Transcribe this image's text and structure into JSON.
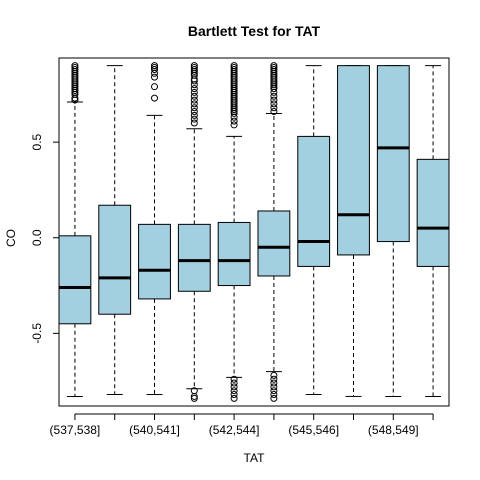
{
  "chart_data": {
    "type": "boxplot",
    "title": "Bartlett Test for TAT",
    "xlabel": "TAT",
    "ylabel": "CO",
    "ylim": [
      -0.88,
      0.94
    ],
    "y_ticks": [
      -0.5,
      0.0,
      0.5
    ],
    "y_tick_labels": [
      "-0.5",
      "0.0",
      "0.5"
    ],
    "x_tick_labels": [
      "(537,538]",
      "(540,541]",
      "(542,544]",
      "(545,546]",
      "(548,549]"
    ],
    "x_tick_positions": [
      1,
      3,
      5,
      7,
      9
    ],
    "box_color": "#a2d0e0",
    "boxes": [
      {
        "position": 1,
        "whisker_low": -0.83,
        "q1": -0.45,
        "median": -0.26,
        "q3": 0.01,
        "whisker_high": 0.71,
        "outliers": [
          0.9,
          0.89,
          0.88,
          0.87,
          0.86,
          0.85,
          0.84,
          0.83,
          0.82,
          0.81,
          0.8,
          0.79,
          0.78,
          0.77,
          0.76,
          0.75,
          0.73,
          0.72
        ]
      },
      {
        "position": 2,
        "whisker_low": -0.82,
        "q1": -0.4,
        "median": -0.21,
        "q3": 0.17,
        "whisker_high": 0.9,
        "outliers": []
      },
      {
        "position": 3,
        "whisker_low": -0.82,
        "q1": -0.32,
        "median": -0.17,
        "q3": 0.07,
        "whisker_high": 0.64,
        "outliers": [
          0.9,
          0.89,
          0.88,
          0.86,
          0.84,
          0.79,
          0.73
        ]
      },
      {
        "position": 4,
        "whisker_low": -0.79,
        "q1": -0.28,
        "median": -0.12,
        "q3": 0.07,
        "whisker_high": 0.57,
        "outliers": [
          0.9,
          0.89,
          0.88,
          0.87,
          0.86,
          0.85,
          0.83,
          0.82,
          0.8,
          0.78,
          0.76,
          0.74,
          0.72,
          0.7,
          0.68,
          0.66,
          0.64,
          0.62,
          0.6,
          -0.8,
          -0.83,
          -0.84
        ]
      },
      {
        "position": 5,
        "whisker_low": -0.73,
        "q1": -0.25,
        "median": -0.12,
        "q3": 0.08,
        "whisker_high": 0.53,
        "outliers": [
          0.9,
          0.89,
          0.88,
          0.87,
          0.86,
          0.85,
          0.84,
          0.83,
          0.82,
          0.81,
          0.8,
          0.79,
          0.78,
          0.77,
          0.76,
          0.75,
          0.74,
          0.73,
          0.72,
          0.71,
          0.7,
          0.69,
          0.68,
          0.67,
          0.66,
          0.65,
          0.63,
          0.61,
          0.59,
          -0.74,
          -0.76,
          -0.78,
          -0.8,
          -0.82,
          -0.84
        ]
      },
      {
        "position": 6,
        "whisker_low": -0.7,
        "q1": -0.2,
        "median": -0.05,
        "q3": 0.14,
        "whisker_high": 0.65,
        "outliers": [
          0.9,
          0.89,
          0.88,
          0.87,
          0.86,
          0.85,
          0.84,
          0.83,
          0.82,
          0.81,
          0.8,
          0.79,
          0.78,
          0.76,
          0.74,
          0.72,
          0.7,
          0.68,
          0.66,
          -0.72,
          -0.74,
          -0.76,
          -0.78,
          -0.8,
          -0.82,
          -0.84
        ]
      },
      {
        "position": 7,
        "whisker_low": -0.82,
        "q1": -0.15,
        "median": -0.02,
        "q3": 0.53,
        "whisker_high": 0.9,
        "outliers": []
      },
      {
        "position": 8,
        "whisker_low": -0.83,
        "q1": -0.09,
        "median": 0.12,
        "q3": 0.9,
        "whisker_high": 0.9,
        "outliers": []
      },
      {
        "position": 9,
        "whisker_low": -0.83,
        "q1": -0.02,
        "median": 0.47,
        "q3": 0.9,
        "whisker_high": 0.9,
        "outliers": []
      },
      {
        "position": 10,
        "whisker_low": -0.83,
        "q1": -0.15,
        "median": 0.05,
        "q3": 0.41,
        "whisker_high": 0.9,
        "outliers": []
      }
    ]
  }
}
